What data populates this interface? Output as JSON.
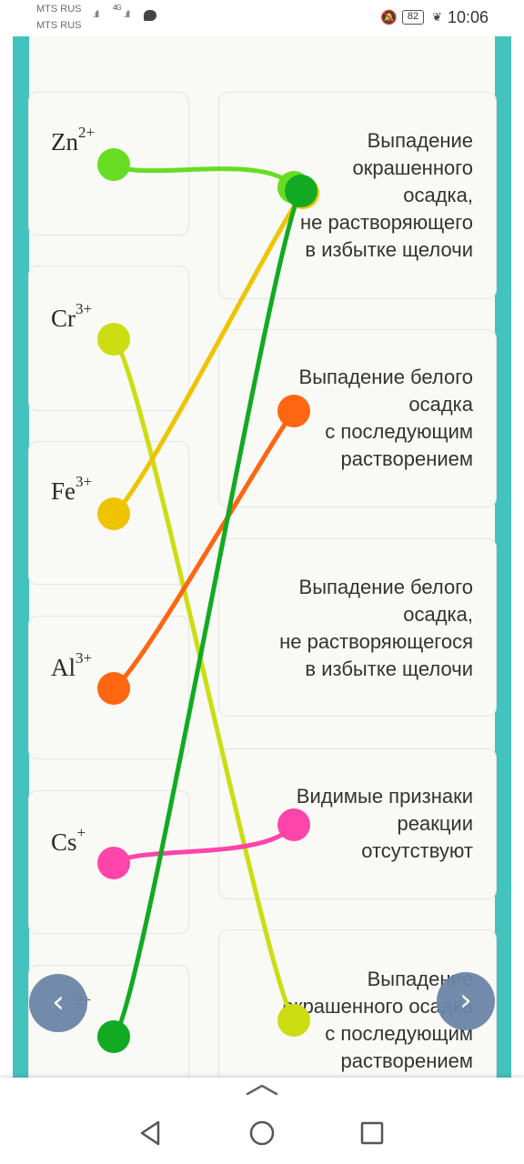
{
  "status_bar": {
    "carrier_1": "MTS RUS",
    "carrier_2": "MTS RUS",
    "signal_1": ".ıll",
    "network": "4G",
    "signal_2": ".ıll",
    "battery": "82",
    "time": "10:06"
  },
  "left_items": [
    {
      "symbol": "Zn",
      "charge": "2+"
    },
    {
      "symbol": "Cr",
      "charge": "3+"
    },
    {
      "symbol": "Fe",
      "charge": "3+"
    },
    {
      "symbol": "Al",
      "charge": "3+"
    },
    {
      "symbol": "Cs",
      "charge": "+"
    },
    {
      "symbol": "",
      "charge": "2+"
    }
  ],
  "right_items": [
    {
      "text": "Выпадение\nокрашенного\nосадка,\nне растворяющего\nв избытке щелочи"
    },
    {
      "text": "Выпадение белого\nосадка\nс последующим\nрастворением"
    },
    {
      "text": "Выпадение белого\nосадка,\nне растворяющегося\nв избытке щелочи"
    },
    {
      "text": "Видимые признаки\nреакции\nотсутствуют"
    },
    {
      "text": "Выпадение\nокрашенного осадка\nс последующим\nрастворением"
    }
  ],
  "connections": [
    {
      "from": 1,
      "to": 1,
      "color": "#66dd22"
    },
    {
      "from": 2,
      "to": 5,
      "color": "#ccdd11"
    },
    {
      "from": 3,
      "to": 1,
      "color": "#eec400"
    },
    {
      "from": 4,
      "to": 2,
      "color": "#ff6611"
    },
    {
      "from": 5,
      "to": 4,
      "color": "#ff44aa"
    },
    {
      "from": 6,
      "to": 1,
      "color": "#11aa22"
    }
  ],
  "navigation": {
    "prev_label": "‹",
    "next_label": "›"
  }
}
